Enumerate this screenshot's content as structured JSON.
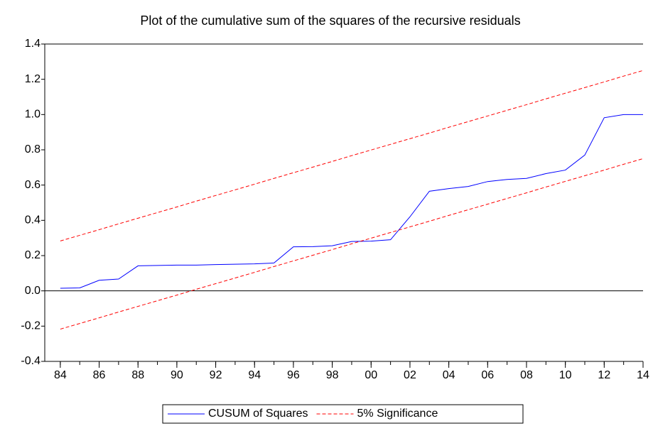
{
  "chart_data": {
    "type": "line",
    "title": "Plot of the cumulative sum of the squares of the recursive residuals",
    "x": [
      1984,
      1985,
      1986,
      1987,
      1988,
      1989,
      1990,
      1991,
      1992,
      1993,
      1994,
      1995,
      1996,
      1997,
      1998,
      1999,
      2000,
      2001,
      2002,
      2003,
      2004,
      2005,
      2006,
      2007,
      2008,
      2009,
      2010,
      2011,
      2012,
      2013,
      2014
    ],
    "series": [
      {
        "name": "CUSUM of Squares",
        "color": "#0000ff",
        "dash": "solid",
        "values": [
          0.015,
          0.017,
          0.06,
          0.067,
          0.142,
          0.144,
          0.146,
          0.146,
          0.149,
          0.151,
          0.153,
          0.158,
          0.25,
          0.251,
          0.256,
          0.28,
          0.282,
          0.29,
          0.42,
          0.565,
          0.58,
          0.592,
          0.62,
          0.632,
          0.638,
          0.665,
          0.685,
          0.77,
          0.982,
          1.0,
          1.0
        ]
      },
      {
        "name": "5% Significance",
        "color": "#ff0000",
        "dash": "dashed",
        "values": [
          0.283,
          0.315,
          0.347,
          0.38,
          0.412,
          0.444,
          0.476,
          0.509,
          0.541,
          0.573,
          0.605,
          0.638,
          0.67,
          0.702,
          0.734,
          0.767,
          0.799,
          0.831,
          0.863,
          0.895,
          0.928,
          0.96,
          0.992,
          1.024,
          1.056,
          1.089,
          1.121,
          1.153,
          1.185,
          1.218,
          1.25
        ]
      },
      {
        "color": "#ff0000",
        "dash": "dashed",
        "values": [
          -0.217,
          -0.185,
          -0.153,
          -0.12,
          -0.088,
          -0.056,
          -0.024,
          0.009,
          0.041,
          0.073,
          0.105,
          0.138,
          0.17,
          0.202,
          0.234,
          0.267,
          0.299,
          0.331,
          0.363,
          0.395,
          0.428,
          0.46,
          0.492,
          0.524,
          0.556,
          0.589,
          0.621,
          0.653,
          0.685,
          0.718,
          0.75
        ]
      }
    ],
    "xlim": [
      1983.2,
      2014
    ],
    "xticks": [
      {
        "value": 1984,
        "label": "84"
      },
      {
        "value": 1986,
        "label": "86"
      },
      {
        "value": 1988,
        "label": "88"
      },
      {
        "value": 1990,
        "label": "90"
      },
      {
        "value": 1992,
        "label": "92"
      },
      {
        "value": 1994,
        "label": "94"
      },
      {
        "value": 1996,
        "label": "96"
      },
      {
        "value": 1998,
        "label": "98"
      },
      {
        "value": 2000,
        "label": "00"
      },
      {
        "value": 2002,
        "label": "02"
      },
      {
        "value": 2004,
        "label": "04"
      },
      {
        "value": 2006,
        "label": "06"
      },
      {
        "value": 2008,
        "label": "08"
      },
      {
        "value": 2010,
        "label": "10"
      },
      {
        "value": 2012,
        "label": "12"
      },
      {
        "value": 2014,
        "label": "14"
      }
    ],
    "ylim": [
      -0.4,
      1.4
    ],
    "yticks": [
      -0.4,
      -0.2,
      {
        "value": 0,
        "label": "0.0"
      },
      0.2,
      0.4,
      0.6,
      0.8,
      {
        "value": 1,
        "label": "1.0"
      },
      1.2,
      1.4
    ],
    "zero_line": true,
    "legend": "bottom"
  }
}
